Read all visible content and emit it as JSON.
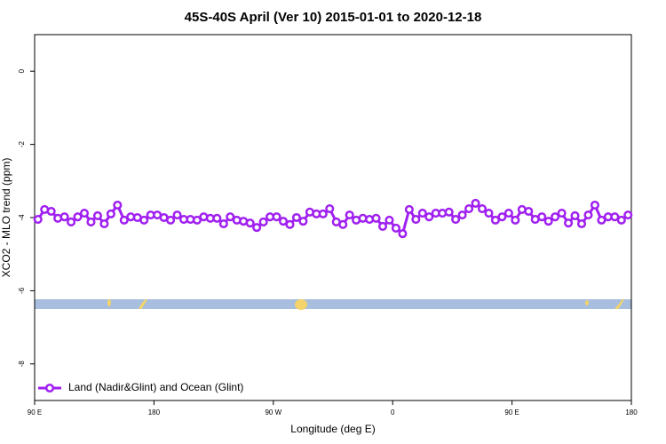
{
  "chart_data": {
    "type": "line",
    "title": "45S-40S April (Ver 10)   2015-01-01 to 2020-12-18",
    "xlabel": "Longitude (deg E)",
    "ylabel": "XCO2 - MLO trend (ppm)",
    "xlim": [
      90,
      540
    ],
    "ylim": [
      -9,
      1
    ],
    "xticks": [
      {
        "value": 90,
        "label": "90 E"
      },
      {
        "value": 180,
        "label": "180"
      },
      {
        "value": 270,
        "label": "90 W"
      },
      {
        "value": 360,
        "label": "0"
      },
      {
        "value": 450,
        "label": "90 E"
      },
      {
        "value": 540,
        "label": "180"
      }
    ],
    "yticks": [
      0,
      -2,
      -4,
      -6,
      -8
    ],
    "legend": "bottom-left",
    "x": [
      92.5,
      97.5,
      102.5,
      107.5,
      112.5,
      117.5,
      122.5,
      127.5,
      132.5,
      137.5,
      142.5,
      147.5,
      152.5,
      157.5,
      162.5,
      167.5,
      172.5,
      177.5,
      182.5,
      187.5,
      192.5,
      197.5,
      202.5,
      207.5,
      212.5,
      217.5,
      222.5,
      227.5,
      232.5,
      237.5,
      242.5,
      247.5,
      252.5,
      257.5,
      262.5,
      267.5,
      272.5,
      277.5,
      282.5,
      287.5,
      292.5,
      297.5,
      302.5,
      307.5,
      312.5,
      317.5,
      322.5,
      327.5,
      332.5,
      337.5,
      342.5,
      347.5,
      352.5,
      357.5,
      362.5,
      367.5,
      372.5,
      377.5,
      382.5,
      387.5,
      392.5,
      397.5,
      402.5,
      407.5,
      412.5,
      417.5,
      422.5,
      427.5,
      432.5,
      437.5,
      442.5,
      447.5,
      452.5,
      457.5,
      462.5,
      467.5,
      472.5,
      477.5,
      482.5,
      487.5,
      492.5,
      497.5,
      502.5,
      507.5,
      512.5,
      517.5,
      522.5,
      527.5,
      532.5,
      537.5
    ],
    "series": [
      {
        "name": "Land (Nadir&Glint) and Ocean (Glint)",
        "color": "#a020f0",
        "values": [
          -4.05,
          -3.78,
          -3.83,
          -4.02,
          -3.98,
          -4.12,
          -3.98,
          -3.88,
          -4.12,
          -3.95,
          -4.17,
          -3.9,
          -3.66,
          -4.07,
          -3.98,
          -4.0,
          -4.07,
          -3.93,
          -3.93,
          -4.0,
          -4.07,
          -3.93,
          -4.05,
          -4.05,
          -4.07,
          -3.98,
          -4.02,
          -4.02,
          -4.17,
          -3.98,
          -4.07,
          -4.1,
          -4.15,
          -4.27,
          -4.12,
          -3.98,
          -3.98,
          -4.1,
          -4.19,
          -4.0,
          -4.1,
          -3.85,
          -3.9,
          -3.9,
          -3.76,
          -4.12,
          -4.19,
          -3.93,
          -4.07,
          -4.02,
          -4.05,
          -4.02,
          -4.24,
          -4.07,
          -4.29,
          -4.44,
          -3.78,
          -4.05,
          -3.88,
          -3.98,
          -3.88,
          -3.88,
          -3.85,
          -4.05,
          -3.93,
          -3.76,
          -3.61,
          -3.76,
          -3.88,
          -4.07,
          -3.98,
          -3.88,
          -4.07,
          -3.78,
          -3.83,
          -4.05,
          -3.98,
          -4.1,
          -3.98,
          -3.88,
          -4.15,
          -3.95,
          -4.17,
          -3.93,
          -3.66,
          -4.07,
          -3.98,
          -3.98,
          -4.07,
          -3.93
        ]
      }
    ]
  }
}
